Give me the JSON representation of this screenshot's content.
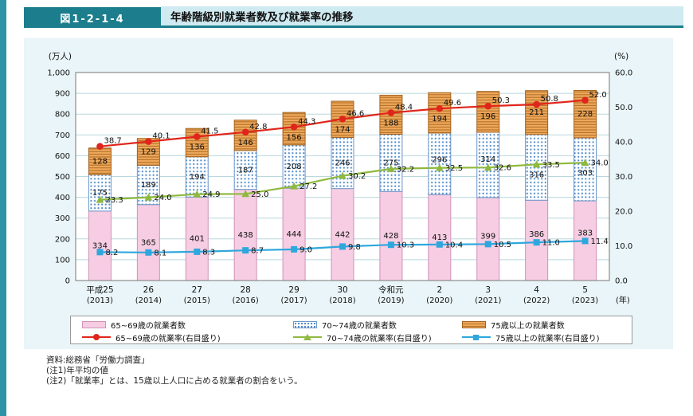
{
  "header": {
    "figure_number": "図1-2-1-4",
    "title": "年齢階級別就業者数及び就業率の推移"
  },
  "chart_data": {
    "type": "bar+line",
    "subtype": "stacked bars on left axis, lines on right axis",
    "title": "年齢階級別就業者数及び就業率の推移",
    "categories": [
      "平成25",
      "26",
      "27",
      "28",
      "29",
      "30",
      "令和元",
      "2",
      "3",
      "4",
      "5"
    ],
    "categories_sub": [
      "(2013)",
      "(2014)",
      "(2015)",
      "(2016)",
      "(2017)",
      "(2018)",
      "(2019)",
      "(2020)",
      "(2021)",
      "(2022)",
      "(2023)"
    ],
    "x_axis_suffix": "(年)",
    "left_axis": {
      "unit": "(万人)",
      "min": 0,
      "max": 1000,
      "ticks": [
        "1,000",
        "900",
        "800",
        "700",
        "600",
        "500",
        "400",
        "300",
        "200",
        "100",
        "0"
      ]
    },
    "right_axis": {
      "unit": "(%)",
      "min": 0,
      "max": 60,
      "ticks": [
        "60.0",
        "50.0",
        "40.0",
        "30.0",
        "20.0",
        "10.0",
        "0.0"
      ]
    },
    "bar_series": [
      {
        "name": "65~69歳の就業者数",
        "values": [
          334,
          365,
          401,
          438,
          444,
          442,
          428,
          413,
          399,
          386,
          383
        ],
        "fill": "#f6cde2",
        "border": "#cf93b8",
        "pattern": null
      },
      {
        "name": "70~74歳の就業者数",
        "values": [
          175,
          189,
          194,
          187,
          208,
          246,
          275,
          296,
          314,
          316,
          303
        ],
        "fill": "#ffffff",
        "border": "#6b97cc",
        "pattern": "dots",
        "dot_color": "#4d88c7"
      },
      {
        "name": "75歳以上の就業者数",
        "values": [
          128,
          129,
          136,
          146,
          156,
          174,
          188,
          194,
          196,
          211,
          228
        ],
        "fill": "#f0a95c",
        "border": "#a2621d",
        "pattern": "stripes",
        "stripe_color": "#b5742a"
      }
    ],
    "line_series": [
      {
        "name": "65~69歳の就業率(右目盛り)",
        "values": [
          38.7,
          40.1,
          41.5,
          42.8,
          44.3,
          46.6,
          48.4,
          49.6,
          50.3,
          50.8,
          52.0
        ],
        "labels": [
          "38.7",
          "40.1",
          "41.5",
          "42.8",
          "44.3",
          "46.6",
          "48.4",
          "49.6",
          "50.3",
          "50.8",
          "52.0"
        ],
        "color": "#e0251b",
        "marker": "circle"
      },
      {
        "name": "70~74歳の就業率(右目盛り)",
        "values": [
          23.3,
          24.0,
          24.9,
          25.0,
          27.2,
          30.2,
          32.2,
          32.5,
          32.6,
          33.5,
          34.0
        ],
        "labels": [
          "23.3",
          "24.0",
          "24.9",
          "25.0",
          "27.2",
          "30.2",
          "32.2",
          "32.5",
          "32.6",
          "33.5",
          "34.0"
        ],
        "color": "#8fb93f",
        "marker": "triangle"
      },
      {
        "name": "75歳以上の就業率(右目盛り)",
        "values": [
          8.2,
          8.1,
          8.3,
          8.7,
          9.0,
          9.8,
          10.3,
          10.4,
          10.5,
          11.0,
          11.4
        ],
        "labels": [
          "8.2",
          "8.1",
          "8.3",
          "8.7",
          "9.0",
          "9.8",
          "10.3",
          "10.4",
          "10.5",
          "11.0",
          "11.4"
        ],
        "color": "#2ea7dd",
        "marker": "square"
      }
    ],
    "legend_position": "bottom",
    "grid": "horizontal gridlines at every 100 on left axis"
  },
  "theme": {
    "accent_teal": "#1c7d8c",
    "left_bar_teal": "#2e93a4",
    "banner_bg": "#cfeaf0",
    "panel_bg": "#e9f5f8"
  },
  "footnotes": [
    "資料:総務省「労働力調査」",
    "(注1)年平均の値",
    "(注2)「就業率」とは、15歳以上人口に占める就業者の割合をいう。"
  ]
}
